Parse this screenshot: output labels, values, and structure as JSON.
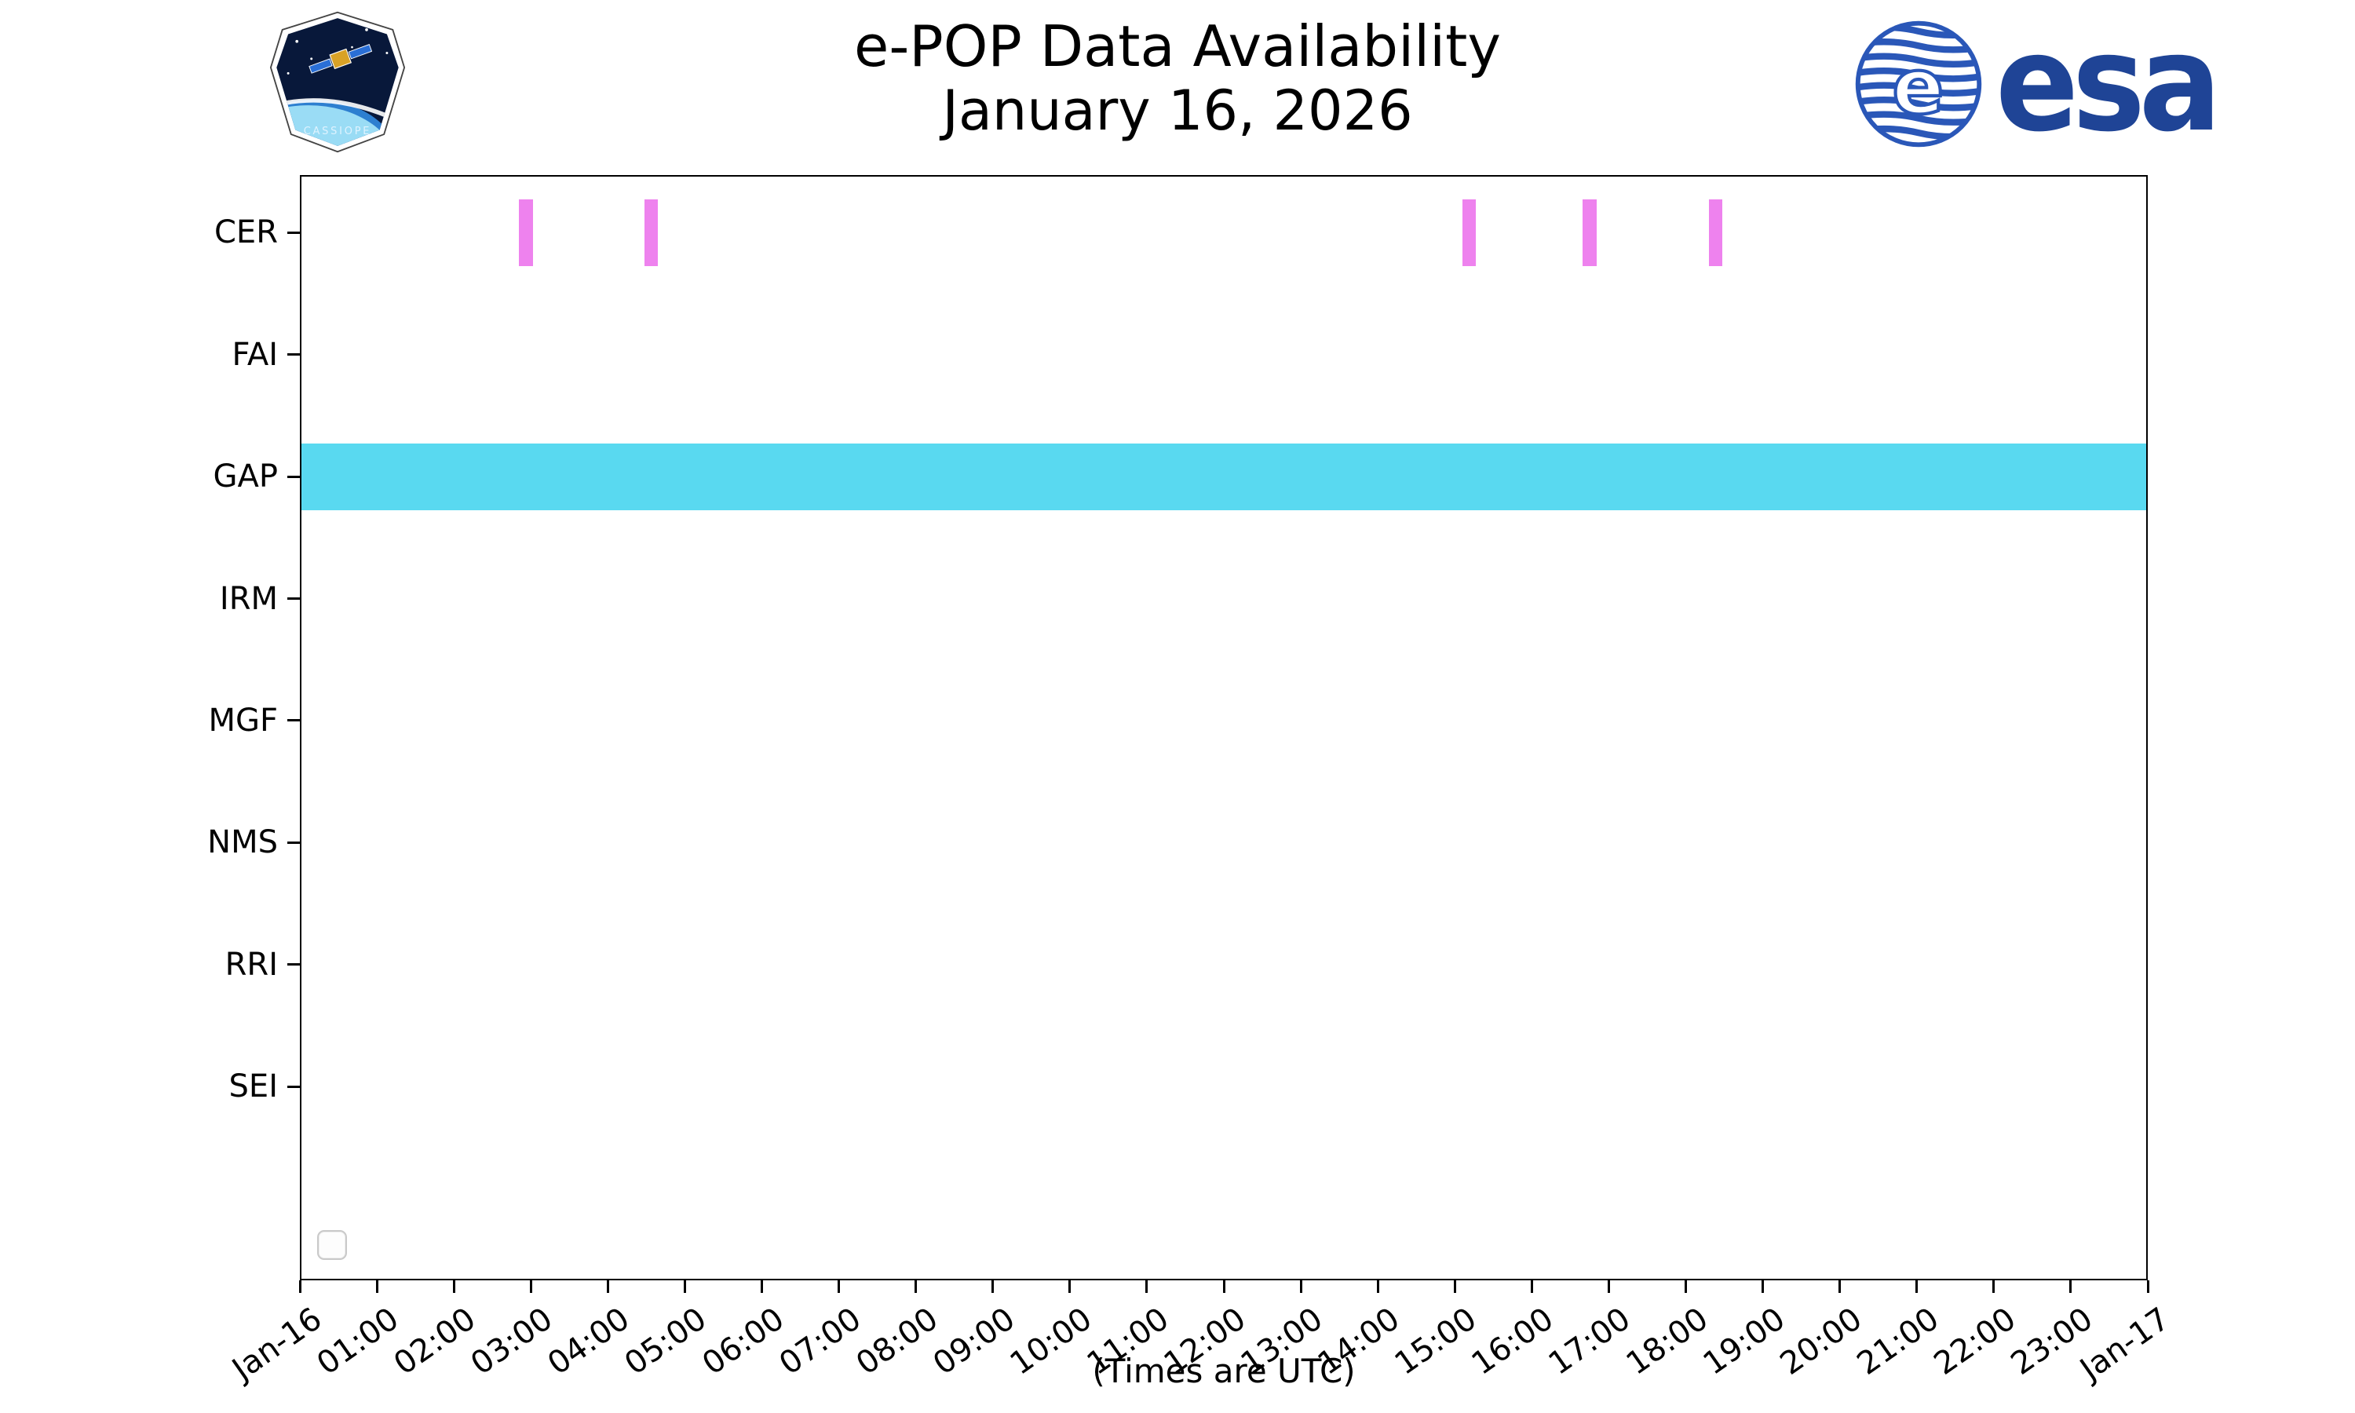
{
  "header": {
    "esa_logo_text": "esa",
    "esa_blue": "#1F4496",
    "cassiope_label": "CASSIOPE"
  },
  "chart_data": {
    "type": "bar",
    "title": "e-POP Data Availability",
    "subtitle": "January 16, 2026",
    "xlabel": "(Times are UTC)",
    "x_range_hours": [
      0,
      24
    ],
    "x_tick_labels": [
      "Jan-16",
      "01:00",
      "02:00",
      "03:00",
      "04:00",
      "05:00",
      "06:00",
      "07:00",
      "08:00",
      "09:00",
      "10:00",
      "11:00",
      "12:00",
      "13:00",
      "14:00",
      "15:00",
      "16:00",
      "17:00",
      "18:00",
      "19:00",
      "20:00",
      "21:00",
      "22:00",
      "23:00",
      "Jan-17"
    ],
    "instruments": [
      "CER",
      "FAI",
      "GAP",
      "IRM",
      "MGF",
      "NMS",
      "RRI",
      "SEI"
    ],
    "series": [
      {
        "instrument": "CER",
        "color": "#EE82EE",
        "intervals": [
          [
            2.83,
            3.01
          ],
          [
            4.46,
            4.64
          ],
          [
            15.1,
            15.28
          ],
          [
            16.67,
            16.85
          ],
          [
            18.31,
            18.49
          ]
        ]
      },
      {
        "instrument": "GAP",
        "color": "#59D9F0",
        "intervals": [
          [
            0,
            24
          ]
        ]
      }
    ],
    "empty_instruments": [
      "FAI",
      "IRM",
      "MGF",
      "NMS",
      "RRI",
      "SEI"
    ],
    "legend": {
      "visible": true,
      "entries": []
    }
  }
}
